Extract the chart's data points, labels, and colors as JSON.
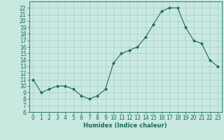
{
  "x": [
    0,
    1,
    2,
    3,
    4,
    5,
    6,
    7,
    8,
    9,
    10,
    11,
    12,
    13,
    14,
    15,
    16,
    17,
    18,
    19,
    20,
    21,
    22,
    23
  ],
  "y": [
    11,
    9,
    9.5,
    10,
    10,
    9.5,
    8.5,
    8,
    8.5,
    9.5,
    13.5,
    15,
    15.5,
    16,
    17.5,
    19.5,
    21.5,
    22,
    22,
    19,
    17,
    16.5,
    14,
    13
  ],
  "line_color": "#1c6b58",
  "marker": "D",
  "marker_size": 2,
  "background_color": "#c8e8e0",
  "grid_color": "#a0c8c0",
  "xlabel": "Humidex (Indice chaleur)",
  "xlim": [
    -0.5,
    23.5
  ],
  "ylim": [
    6,
    23
  ],
  "yticks": [
    6,
    7,
    8,
    9,
    10,
    11,
    12,
    13,
    14,
    15,
    16,
    17,
    18,
    19,
    20,
    21,
    22
  ],
  "xticks": [
    0,
    1,
    2,
    3,
    4,
    5,
    6,
    7,
    8,
    9,
    10,
    11,
    12,
    13,
    14,
    15,
    16,
    17,
    18,
    19,
    20,
    21,
    22,
    23
  ],
  "tick_fontsize": 5.5,
  "xlabel_fontsize": 6,
  "linewidth": 0.8
}
